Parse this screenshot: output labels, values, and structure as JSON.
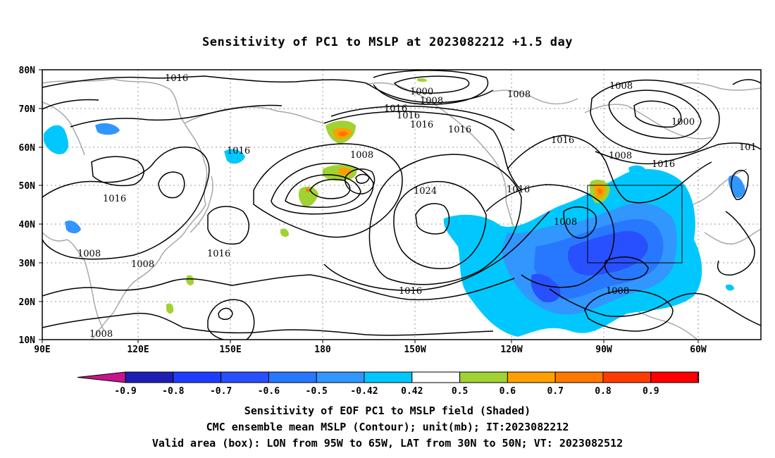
{
  "title": "Sensitivity of PC1 to MSLP at 2023082212 +1.5 day",
  "map": {
    "lat_labels": [
      "80N",
      "70N",
      "60N",
      "50N",
      "40N",
      "30N",
      "20N",
      "10N"
    ],
    "lon_labels": [
      "90E",
      "120E",
      "150E",
      "180",
      "150W",
      "120W",
      "90W",
      "60W"
    ],
    "contour_labels": [
      {
        "text": "1016"
      },
      {
        "text": "1000"
      },
      {
        "text": "1008"
      },
      {
        "text": "1016"
      },
      {
        "text": "1016"
      },
      {
        "text": "1016"
      },
      {
        "text": "1016"
      },
      {
        "text": "1008"
      },
      {
        "text": "1000"
      },
      {
        "text": "1016"
      },
      {
        "text": "101"
      },
      {
        "text": "1016"
      },
      {
        "text": "1008"
      },
      {
        "text": "1016"
      },
      {
        "text": "1024"
      },
      {
        "text": "1016"
      },
      {
        "text": "1008"
      },
      {
        "text": "1016"
      },
      {
        "text": "1016"
      },
      {
        "text": "1008"
      },
      {
        "text": "1008"
      },
      {
        "text": "1008"
      },
      {
        "text": "1016"
      },
      {
        "text": "1008"
      },
      {
        "text": "1008"
      },
      {
        "text": "1008"
      }
    ],
    "valid_box": {
      "lon_from": "95W",
      "lon_to": "65W",
      "lat_from": "30N",
      "lat_to": "50N"
    }
  },
  "colorbar": {
    "labels": [
      "-0.9",
      "-0.8",
      "-0.7",
      "-0.6",
      "-0.5",
      "-0.42",
      "0.42",
      "0.5",
      "0.6",
      "0.7",
      "0.8",
      "0.9"
    ],
    "colors": [
      "#1e1eb4",
      "#1e3cff",
      "#2850ff",
      "#2878ff",
      "#3296ff",
      "#00c8ff",
      "#ffffff",
      "#a0d232",
      "#ffa000",
      "#ff7800",
      "#ff3c00",
      "#ff0000"
    ],
    "low_color": "#c8148c",
    "high_color": "#ff96c8"
  },
  "captions": {
    "line1": "Sensitivity of EOF PC1 to MSLP field (Shaded)",
    "line2": "CMC ensemble mean MSLP (Contour); unit(mb); IT:2023082212",
    "line3": "Valid area (box): LON from 95W to 65W, LAT from 30N to 50N; VT: 2023082512"
  }
}
